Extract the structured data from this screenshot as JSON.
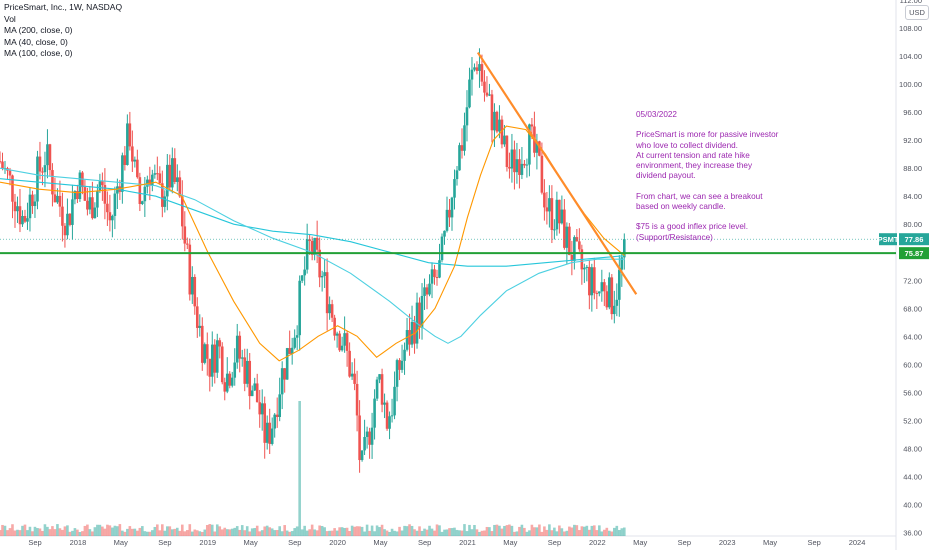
{
  "legend": {
    "symbol_line": "PriceSmart, Inc., 1W, NASDAQ",
    "vol_label": "Vol",
    "ma200_label": "MA (200, close, 0)",
    "ma40_label": "MA (40, close, 0)",
    "ma100_label": "MA (100, close, 0)"
  },
  "currency_badge": "USD",
  "annotation": {
    "date": "05/03/2022",
    "para1": "PriceSmart is more for passive investor\nwho love to collect dividend.\nAt current tension and rate hike\nenvironment, they increase they\ndividend payout.",
    "para2": "From chart, we can see a breakout\nbased on weekly candle.",
    "para3": "$75 is a good inflex price level.\n(Support/Resistance)"
  },
  "price_tags": {
    "symbol": "PSMT",
    "last_price": "77.86",
    "level_price": "75.87"
  },
  "colors": {
    "up": "#26a69a",
    "down": "#ef5350",
    "ma200": "#26c6da",
    "ma40": "#ff9800",
    "ma100": "#4dd0e1",
    "trendline": "#ff8c2a",
    "support": "#22a036",
    "annotation": "#9c27b0"
  },
  "chart_data": {
    "type": "candlestick",
    "title": "PriceSmart, Inc., 1W, NASDAQ",
    "xlabel": "",
    "ylabel": "",
    "y_ticks": [
      "36.00",
      "40.00",
      "44.00",
      "48.00",
      "52.00",
      "56.00",
      "60.00",
      "64.00",
      "68.00",
      "72.00",
      "76.00",
      "80.00",
      "84.00",
      "88.00",
      "92.00",
      "96.00",
      "100.00",
      "104.00",
      "108.00",
      "112.00"
    ],
    "y_range": [
      35.5,
      112
    ],
    "x_ticks": [
      {
        "label": "Sep",
        "t": 2017.67
      },
      {
        "label": "2018",
        "t": 2018.0
      },
      {
        "label": "May",
        "t": 2018.33
      },
      {
        "label": "Sep",
        "t": 2018.67
      },
      {
        "label": "2019",
        "t": 2019.0
      },
      {
        "label": "May",
        "t": 2019.33
      },
      {
        "label": "Sep",
        "t": 2019.67
      },
      {
        "label": "2020",
        "t": 2020.0
      },
      {
        "label": "May",
        "t": 2020.33
      },
      {
        "label": "Sep",
        "t": 2020.67
      },
      {
        "label": "2021",
        "t": 2021.0
      },
      {
        "label": "May",
        "t": 2021.33
      },
      {
        "label": "Sep",
        "t": 2021.67
      },
      {
        "label": "2022",
        "t": 2022.0
      },
      {
        "label": "May",
        "t": 2022.33
      },
      {
        "label": "Sep",
        "t": 2022.67
      },
      {
        "label": "2023",
        "t": 2023.0
      },
      {
        "label": "May",
        "t": 2023.33
      },
      {
        "label": "Sep",
        "t": 2023.67
      },
      {
        "label": "2024",
        "t": 2024.0
      }
    ],
    "x_range": [
      2017.4,
      2024.3
    ],
    "price_path": [
      [
        2017.4,
        89.0
      ],
      [
        2017.5,
        85.0
      ],
      [
        2017.58,
        80.5
      ],
      [
        2017.67,
        86.0
      ],
      [
        2017.75,
        90.0
      ],
      [
        2017.83,
        84.0
      ],
      [
        2017.92,
        80.5
      ],
      [
        2018.0,
        86.5
      ],
      [
        2018.08,
        82.0
      ],
      [
        2018.17,
        86.0
      ],
      [
        2018.25,
        80.0
      ],
      [
        2018.33,
        88.0
      ],
      [
        2018.4,
        93.0
      ],
      [
        2018.47,
        82.5
      ],
      [
        2018.55,
        88.0
      ],
      [
        2018.63,
        84.0
      ],
      [
        2018.72,
        87.0
      ],
      [
        2018.78,
        84.0
      ],
      [
        2018.84,
        75.0
      ],
      [
        2018.9,
        68.5
      ],
      [
        2018.96,
        63.0
      ],
      [
        2019.02,
        60.0
      ],
      [
        2019.08,
        63.0
      ],
      [
        2019.14,
        58.0
      ],
      [
        2019.22,
        62.0
      ],
      [
        2019.3,
        59.0
      ],
      [
        2019.38,
        55.0
      ],
      [
        2019.45,
        49.0
      ],
      [
        2019.5,
        52.0
      ],
      [
        2019.55,
        57.0
      ],
      [
        2019.62,
        62.0
      ],
      [
        2019.68,
        66.0
      ],
      [
        2019.74,
        73.0
      ],
      [
        2019.79,
        77.0
      ],
      [
        2019.85,
        74.0
      ],
      [
        2019.92,
        70.0
      ],
      [
        2019.98,
        66.0
      ],
      [
        2020.03,
        64.0
      ],
      [
        2020.09,
        60.0
      ],
      [
        2020.14,
        55.0
      ],
      [
        2020.18,
        44.0
      ],
      [
        2020.23,
        49.0
      ],
      [
        2020.28,
        55.0
      ],
      [
        2020.33,
        58.0
      ],
      [
        2020.38,
        52.0
      ],
      [
        2020.43,
        55.0
      ],
      [
        2020.48,
        60.0
      ],
      [
        2020.55,
        64.0
      ],
      [
        2020.62,
        67.0
      ],
      [
        2020.7,
        70.0
      ],
      [
        2020.78,
        73.0
      ],
      [
        2020.84,
        79.0
      ],
      [
        2020.9,
        88.0
      ],
      [
        2020.96,
        92.0
      ],
      [
        2021.02,
        100.0
      ],
      [
        2021.08,
        104.0
      ],
      [
        2021.14,
        98.0
      ],
      [
        2021.2,
        95.0
      ],
      [
        2021.26,
        92.0
      ],
      [
        2021.32,
        88.0
      ],
      [
        2021.4,
        90.0
      ],
      [
        2021.48,
        92.0
      ],
      [
        2021.55,
        88.0
      ],
      [
        2021.62,
        82.0
      ],
      [
        2021.7,
        81.0
      ],
      [
        2021.78,
        77.0
      ],
      [
        2021.86,
        74.0
      ],
      [
        2021.94,
        72.0
      ],
      [
        2022.0,
        70.0
      ],
      [
        2022.06,
        72.0
      ],
      [
        2022.1,
        69.0
      ],
      [
        2022.15,
        71.0
      ],
      [
        2022.18,
        73.0
      ],
      [
        2022.21,
        77.86
      ]
    ],
    "ma40": [
      [
        2017.4,
        86.0
      ],
      [
        2017.7,
        85.0
      ],
      [
        2018.0,
        84.5
      ],
      [
        2018.3,
        85.0
      ],
      [
        2018.6,
        86.0
      ],
      [
        2018.8,
        84.0
      ],
      [
        2019.0,
        76.0
      ],
      [
        2019.2,
        69.0
      ],
      [
        2019.4,
        63.0
      ],
      [
        2019.55,
        60.5
      ],
      [
        2019.7,
        62.0
      ],
      [
        2019.85,
        64.0
      ],
      [
        2020.0,
        65.5
      ],
      [
        2020.15,
        64.0
      ],
      [
        2020.3,
        61.0
      ],
      [
        2020.45,
        63.0
      ],
      [
        2020.6,
        64.5
      ],
      [
        2020.75,
        68.0
      ],
      [
        2020.9,
        74.0
      ],
      [
        2021.0,
        81.0
      ],
      [
        2021.1,
        87.0
      ],
      [
        2021.2,
        92.0
      ],
      [
        2021.3,
        94.0
      ],
      [
        2021.45,
        93.5
      ],
      [
        2021.6,
        90.0
      ],
      [
        2021.75,
        85.5
      ],
      [
        2021.9,
        81.5
      ],
      [
        2022.05,
        78.0
      ],
      [
        2022.21,
        75.5
      ]
    ],
    "ma100": [
      [
        2017.4,
        88.0
      ],
      [
        2017.7,
        87.0
      ],
      [
        2018.0,
        86.5
      ],
      [
        2018.3,
        86.0
      ],
      [
        2018.6,
        85.5
      ],
      [
        2018.9,
        83.5
      ],
      [
        2019.2,
        80.5
      ],
      [
        2019.5,
        78.0
      ],
      [
        2019.8,
        76.0
      ],
      [
        2020.1,
        73.0
      ],
      [
        2020.4,
        69.0
      ],
      [
        2020.6,
        66.0
      ],
      [
        2020.75,
        64.0
      ],
      [
        2020.85,
        63.0
      ],
      [
        2020.95,
        64.0
      ],
      [
        2021.1,
        67.0
      ],
      [
        2021.3,
        70.5
      ],
      [
        2021.55,
        73.0
      ],
      [
        2021.8,
        74.5
      ],
      [
        2022.0,
        75.0
      ],
      [
        2022.21,
        75.0
      ]
    ],
    "ma200": [
      [
        2017.4,
        86.5
      ],
      [
        2017.7,
        86.0
      ],
      [
        2018.0,
        85.5
      ],
      [
        2018.3,
        85.0
      ],
      [
        2018.6,
        84.0
      ],
      [
        2018.9,
        82.0
      ],
      [
        2019.2,
        80.0
      ],
      [
        2019.5,
        79.0
      ],
      [
        2019.8,
        78.5
      ],
      [
        2020.1,
        77.5
      ],
      [
        2020.4,
        76.0
      ],
      [
        2020.7,
        74.5
      ],
      [
        2021.0,
        74.0
      ],
      [
        2021.3,
        74.0
      ],
      [
        2021.6,
        74.5
      ],
      [
        2021.9,
        75.0
      ],
      [
        2022.21,
        75.5
      ]
    ],
    "trendline": [
      [
        2021.08,
        104.5
      ],
      [
        2022.3,
        70.0
      ]
    ],
    "support_level": 75.87,
    "last_price": 77.86
  }
}
